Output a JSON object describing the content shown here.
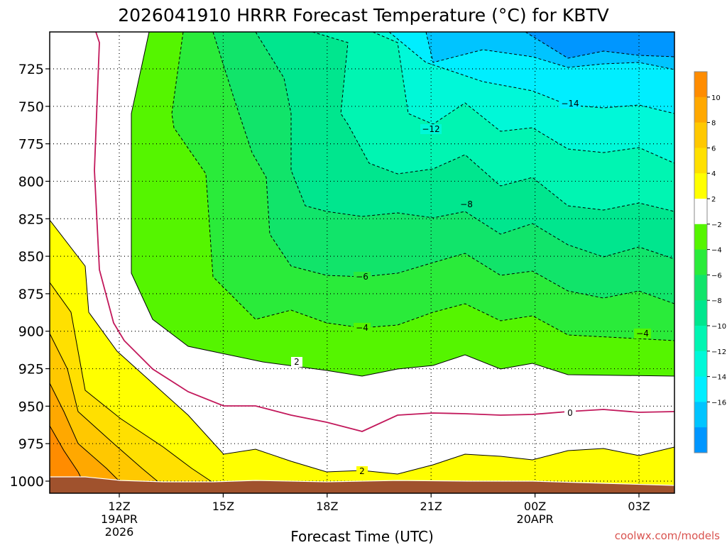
{
  "title": "2026041910 HRRR Forecast Temperature (°C) for KBTV",
  "credit": "coolwx.com/models",
  "colors": {
    "orange": "#ff8c00",
    "amber": "#ffa800",
    "gold": "#ffc800",
    "goldlight": "#ffe000",
    "yellow": "#ffff00",
    "green1": "#55f500",
    "green2": "#2aeb3a",
    "green3": "#11e46a",
    "green4": "#00e68e",
    "teal1": "#00f5b2",
    "teal2": "#00f8d8",
    "cyan": "#00eeff",
    "sky": "#00c4ff",
    "blue": "#0096ff",
    "ground": "#a0522d",
    "freezing_line": "#c2185b"
  },
  "chart_data": {
    "type": "contour",
    "title": "2026041910 HRRR Forecast Temperature (°C) for KBTV",
    "xlabel": "Forecast Time (UTC)",
    "ylabel": "",
    "y_axis": {
      "ticks": [
        "725",
        "750",
        "775",
        "800",
        "825",
        "850",
        "875",
        "900",
        "925",
        "950",
        "975",
        "1000"
      ],
      "reversed": true
    },
    "x_axis": {
      "ticks": [
        {
          "label": "12Z",
          "sub": [
            "19APR",
            "2026"
          ]
        },
        {
          "label": "15Z",
          "sub": []
        },
        {
          "label": "18Z",
          "sub": []
        },
        {
          "label": "21Z",
          "sub": []
        },
        {
          "label": "00Z",
          "sub": [
            "20APR"
          ]
        },
        {
          "label": "03Z",
          "sub": []
        }
      ]
    },
    "colorbar": {
      "levels": [
        "10",
        "8",
        "6",
        "4",
        "2",
        "−2",
        "−4",
        "−6",
        "−8",
        "−10",
        "−12",
        "−14",
        "−16"
      ]
    },
    "contour_labels": [
      "−14",
      "−12",
      "−8",
      "−6",
      "−4",
      "−4",
      "2",
      "0",
      "2"
    ],
    "grid": true
  }
}
